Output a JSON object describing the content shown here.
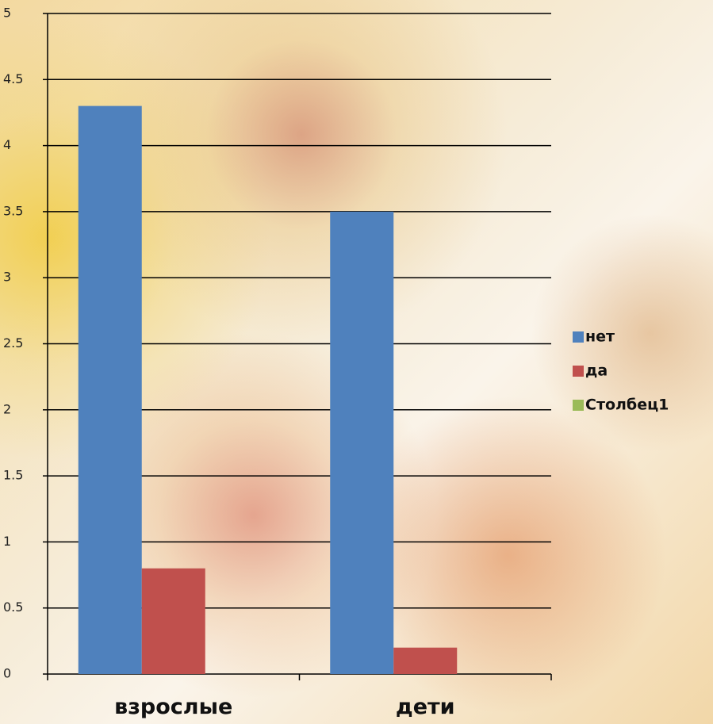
{
  "chart_data": {
    "type": "bar",
    "categories": [
      "взрослые",
      "дети"
    ],
    "series": [
      {
        "name": "нет",
        "color": "#4f81bd",
        "values": [
          4.3,
          3.5
        ]
      },
      {
        "name": "да",
        "color": "#c0504d",
        "values": [
          0.8,
          0.2
        ]
      },
      {
        "name": "Столбец1",
        "color": "#9bbb59",
        "values": [
          null,
          null
        ]
      }
    ],
    "ylim": [
      0,
      5
    ],
    "yticks": [
      0,
      0.5,
      1,
      1.5,
      2,
      2.5,
      3,
      3.5,
      4,
      4.5,
      5
    ],
    "grid": true,
    "legend": "right"
  }
}
